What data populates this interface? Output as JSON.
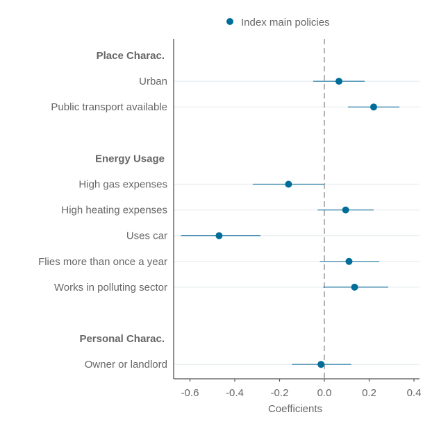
{
  "chart_data": {
    "type": "scatter",
    "subtype": "coefficient-plot",
    "title": "",
    "xlabel": "Coefficients",
    "ylabel": "",
    "xlim": [
      -0.65,
      0.4
    ],
    "x_ticks": [
      -0.6,
      -0.4,
      -0.2,
      0.0,
      0.2,
      0.4
    ],
    "x_tick_labels": [
      "-0.6",
      "-0.4",
      "-0.2",
      "0.0",
      "0.2",
      "0.4"
    ],
    "reference_line": 0,
    "grid": "horizontal-only",
    "legend": {
      "placement": "top",
      "entries": [
        {
          "label": "Index main policies",
          "color": "#006d99"
        }
      ]
    },
    "colors": {
      "point": "#006d99",
      "errorbar": "#2b7fa6",
      "gridline": "#edf0f2",
      "axis": "#555555",
      "text": "#666666",
      "reference": "#8a8a8a"
    },
    "rows": [
      {
        "kind": "group",
        "label": "Place Charac."
      },
      {
        "kind": "item",
        "label": "Urban",
        "estimate": 0.065,
        "lower": -0.05,
        "upper": 0.18
      },
      {
        "kind": "item",
        "label": "Public transport available",
        "estimate": 0.22,
        "lower": 0.105,
        "upper": 0.335
      },
      {
        "kind": "spacer"
      },
      {
        "kind": "group",
        "label": "Energy Usage"
      },
      {
        "kind": "item",
        "label": "High gas expenses",
        "estimate": -0.16,
        "lower": -0.32,
        "upper": 0.0
      },
      {
        "kind": "item",
        "label": "High heating expenses",
        "estimate": 0.095,
        "lower": -0.03,
        "upper": 0.22
      },
      {
        "kind": "item",
        "label": "Uses car",
        "estimate": -0.47,
        "lower": -0.64,
        "upper": -0.285
      },
      {
        "kind": "item",
        "label": "Flies more than once a year",
        "estimate": 0.11,
        "lower": -0.02,
        "upper": 0.245
      },
      {
        "kind": "item",
        "label": "Works in polluting sector",
        "estimate": 0.135,
        "lower": -0.005,
        "upper": 0.285
      },
      {
        "kind": "spacer"
      },
      {
        "kind": "group",
        "label": "Personal Charac."
      },
      {
        "kind": "item",
        "label": "Owner or landlord",
        "estimate": -0.015,
        "lower": -0.145,
        "upper": 0.12
      }
    ]
  }
}
